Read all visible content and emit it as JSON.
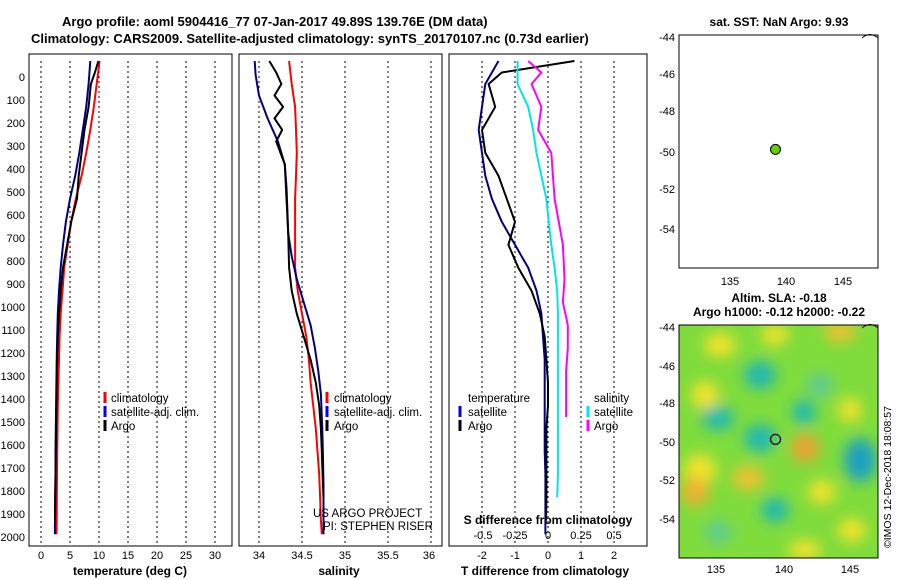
{
  "title_line1": "Argo profile: aoml 5904416_77 07-Jan-2017 49.89S 139.76E (DM data)",
  "title_line2": "Climatology: CARS2009. Satellite-adjusted climatology: synTS_20170107.nc (0.73d earlier)",
  "colors": {
    "red": "#ff0000",
    "blue": "#0000ff",
    "navy": "#000080",
    "black": "#000000",
    "cyan": "#00e5e5",
    "magenta": "#ff00ff",
    "dot": "#66cc00"
  },
  "chart_data": [
    {
      "id": "temperature",
      "type": "line",
      "xlabel": "temperature (deg C)",
      "ylabel": "",
      "xlim": [
        -1.5,
        31.5
      ],
      "ylim": [
        2060,
        0
      ],
      "xticks": [
        "0",
        "5",
        "10",
        "15",
        "20",
        "25",
        "30"
      ],
      "yticks": [
        "0",
        "100",
        "200",
        "300",
        "400",
        "500",
        "600",
        "700",
        "800",
        "900",
        "1000",
        "1100",
        "1200",
        "1300",
        "1400",
        "1500",
        "1600",
        "1700",
        "1800",
        "1900",
        "2000"
      ],
      "grid": true,
      "legend": [
        "climatology",
        "satellite-adj. clim.",
        "Argo"
      ],
      "series": [
        {
          "name": "climatology",
          "color": "red",
          "x": [
            10.1,
            9.6,
            9.1,
            8.5,
            7.8,
            7.0,
            6.0,
            5.2,
            4.6,
            4.0,
            3.7,
            3.4,
            3.2,
            3.1,
            3.0,
            2.9,
            2.85,
            2.8,
            2.75,
            2.72,
            2.7,
            2.68
          ],
          "y": [
            0,
            100,
            200,
            300,
            400,
            500,
            600,
            700,
            800,
            900,
            1000,
            1100,
            1200,
            1300,
            1400,
            1500,
            1600,
            1700,
            1800,
            1900,
            2000,
            2060
          ]
        },
        {
          "name": "satellite-adj. clim.",
          "color": "navy",
          "x": [
            8.5,
            8.2,
            7.8,
            7.2,
            6.6,
            5.9,
            5.0,
            4.3,
            3.8,
            3.4,
            3.1,
            2.9,
            2.8,
            2.7,
            2.65,
            2.6,
            2.55,
            2.5,
            2.5,
            2.45,
            2.42,
            2.4
          ],
          "y": [
            0,
            100,
            200,
            300,
            400,
            500,
            600,
            700,
            800,
            900,
            1000,
            1100,
            1200,
            1300,
            1400,
            1500,
            1600,
            1700,
            1800,
            1900,
            2000,
            2060
          ]
        },
        {
          "name": "Argo",
          "color": "black",
          "x": [
            9.9,
            9.3,
            8.6,
            8.2,
            7.5,
            7.0,
            6.5,
            6.2,
            5.2,
            4.5,
            3.8,
            3.4,
            3.1,
            2.9,
            2.8,
            2.7,
            2.65,
            2.6,
            2.55,
            2.5,
            2.45,
            2.42
          ],
          "y": [
            0,
            50,
            100,
            200,
            300,
            400,
            500,
            600,
            700,
            800,
            900,
            1000,
            1100,
            1200,
            1300,
            1400,
            1500,
            1600,
            1700,
            1800,
            1900,
            2000
          ]
        }
      ]
    },
    {
      "id": "salinity",
      "type": "line",
      "xlabel": "salinity",
      "ylabel": "",
      "xlim": [
        33.85,
        36.1
      ],
      "ylim": [
        2060,
        0
      ],
      "xticks": [
        "34",
        "34.5",
        "35",
        "35.5",
        "36"
      ],
      "grid": true,
      "legend": [
        "climatology",
        "satellite-adj. clim.",
        "Argo"
      ],
      "credit": [
        "US ARGO PROJECT",
        "PI: STEPHEN RISER"
      ],
      "series": [
        {
          "name": "climatology",
          "color": "red",
          "x": [
            34.35,
            34.38,
            34.42,
            34.43,
            34.44,
            34.43,
            34.42,
            34.42,
            34.42,
            34.42,
            34.45,
            34.5,
            34.55,
            34.58,
            34.6,
            34.63,
            34.66,
            34.68,
            34.7,
            34.71,
            34.72,
            34.73
          ],
          "y": [
            0,
            100,
            200,
            300,
            400,
            500,
            600,
            700,
            800,
            900,
            1000,
            1100,
            1200,
            1300,
            1400,
            1500,
            1600,
            1700,
            1800,
            1900,
            2000,
            2060
          ]
        },
        {
          "name": "satellite-adj. clim.",
          "color": "navy",
          "x": [
            33.95,
            33.96,
            34.0,
            34.1,
            34.22,
            34.3,
            34.32,
            34.33,
            34.34,
            34.38,
            34.44,
            34.52,
            34.6,
            34.65,
            34.69,
            34.72,
            34.73,
            34.74,
            34.745,
            34.75,
            34.75,
            34.75
          ],
          "y": [
            0,
            60,
            150,
            250,
            350,
            450,
            550,
            650,
            750,
            850,
            950,
            1050,
            1150,
            1250,
            1350,
            1450,
            1550,
            1650,
            1750,
            1850,
            1950,
            2060
          ]
        },
        {
          "name": "Argo",
          "color": "black",
          "x": [
            34.12,
            34.2,
            34.26,
            34.18,
            34.28,
            34.18,
            34.27,
            34.2,
            34.3,
            34.32,
            34.34,
            34.35,
            34.38,
            34.44,
            34.52,
            34.6,
            34.66,
            34.7,
            34.72,
            34.73,
            34.74,
            34.75
          ],
          "y": [
            0,
            50,
            100,
            150,
            200,
            250,
            300,
            350,
            450,
            600,
            750,
            900,
            1000,
            1100,
            1200,
            1300,
            1400,
            1500,
            1600,
            1700,
            1800,
            1900
          ]
        }
      ]
    },
    {
      "id": "difference",
      "type": "line",
      "xlabel": "T difference from climatology",
      "xlabel2": "S difference from climatology",
      "xlim": [
        -3,
        3
      ],
      "ylim": [
        2060,
        0
      ],
      "xticks": [
        "-2",
        "-1",
        "0",
        "1",
        "2"
      ],
      "xticks2": [
        "-0.5",
        "-0.25",
        "0",
        "0.25",
        "0.5"
      ],
      "grid": true,
      "legend_temperature": {
        "title": "temperature",
        "items": [
          "satellite",
          "Argo"
        ]
      },
      "legend_salinity": {
        "title": "salinity",
        "items": [
          "satellite",
          "Argo"
        ]
      },
      "series": [
        {
          "name": "temperature satellite",
          "color": "navy",
          "x": [
            -1.5,
            -1.9,
            -2.0,
            -2.1,
            -2.0,
            -1.9,
            -1.7,
            -1.4,
            -1.0,
            -0.6,
            -0.35,
            -0.2,
            -0.15,
            -0.1,
            -0.1,
            -0.1,
            -0.1,
            -0.1,
            -0.08,
            -0.08,
            -0.08,
            -0.08
          ],
          "y": [
            0,
            100,
            200,
            300,
            400,
            500,
            600,
            700,
            800,
            900,
            1000,
            1100,
            1200,
            1300,
            1400,
            1500,
            1600,
            1700,
            1800,
            1900,
            2000,
            2060
          ]
        },
        {
          "name": "temperature Argo",
          "color": "black",
          "x": [
            0.8,
            -1.4,
            -1.8,
            -1.6,
            -2.0,
            -1.9,
            -1.5,
            -1.0,
            -1.2,
            -0.9,
            -0.5,
            -0.25,
            -0.1,
            -0.05,
            0.0,
            0.0,
            -0.05,
            -0.05,
            -0.05,
            -0.05,
            -0.06
          ],
          "y": [
            0,
            50,
            100,
            200,
            300,
            400,
            500,
            700,
            800,
            900,
            1000,
            1100,
            1200,
            1300,
            1400,
            1500,
            1600,
            1700,
            1800,
            1900,
            2000
          ]
        },
        {
          "name": "salinity satellite",
          "color": "cyan",
          "x": [
            -0.92,
            -0.92,
            -0.6,
            -0.45,
            -0.35,
            -0.2,
            -0.05,
            0.02,
            0.1,
            0.2,
            0.28,
            0.3,
            0.3,
            0.3,
            0.3,
            0.3,
            0.3,
            0.3,
            0.3,
            0.28
          ],
          "y": [
            0,
            100,
            200,
            300,
            400,
            500,
            600,
            700,
            800,
            900,
            1000,
            1100,
            1200,
            1300,
            1400,
            1500,
            1600,
            1700,
            1800,
            1900
          ]
        },
        {
          "name": "salinity Argo",
          "color": "magenta",
          "x": [
            -0.6,
            -0.2,
            -0.5,
            -0.2,
            -0.3,
            0.1,
            0.2,
            0.45,
            0.5,
            0.45,
            0.6,
            0.6,
            0.55,
            0.55,
            0.55
          ],
          "y": [
            0,
            50,
            100,
            200,
            300,
            400,
            600,
            800,
            950,
            1050,
            1150,
            1250,
            1350,
            1450,
            1550
          ]
        }
      ]
    },
    {
      "id": "sst_map",
      "type": "scatter",
      "title": "sat. SST: NaN Argo: 9.93",
      "xlim": [
        132,
        148
      ],
      "ylim": [
        -56,
        -44
      ],
      "xticks": [
        "135",
        "140",
        "145"
      ],
      "yticks": [
        "-44",
        "-46",
        "-48",
        "-50",
        "-52",
        "-54"
      ],
      "points": [
        {
          "lon": 139.76,
          "lat": -49.89
        }
      ]
    },
    {
      "id": "sla_map",
      "type": "heatmap",
      "title_line1": "Altim. SLA: -0.18",
      "title_line2": "Argo h1000: -0.12 h2000: -0.22",
      "xlim": [
        132,
        148
      ],
      "ylim": [
        -56,
        -44
      ],
      "xticks": [
        "135",
        "140",
        "145"
      ],
      "yticks": [
        "-44",
        "-46",
        "-48",
        "-50",
        "-52",
        "-54"
      ],
      "points": [
        {
          "lon": 139.76,
          "lat": -49.89
        }
      ],
      "credit": "©IMOS 12-Dec-2018 18:08:57"
    }
  ]
}
